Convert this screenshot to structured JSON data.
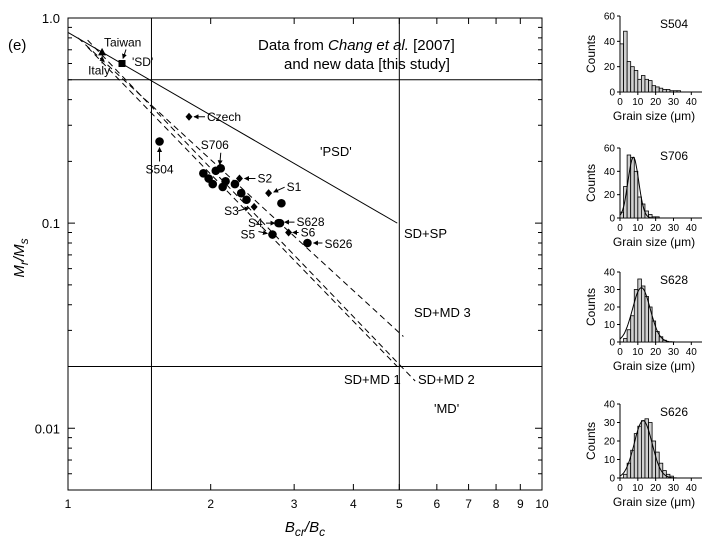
{
  "chart_data": [
    {
      "type": "scatter",
      "panel_label": "(e)",
      "xlabel_main": "B",
      "xlabel_sub1": "cr",
      "xlabel_mid": "/B",
      "xlabel_sub2": "c",
      "ylabel_main": "M",
      "ylabel_sub1": "r",
      "ylabel_mid": "/M",
      "ylabel_sub2": "s",
      "xscale": "log",
      "yscale": "log",
      "xlim": [
        1,
        10
      ],
      "ylim": [
        0.005,
        1.0
      ],
      "x_ticks": [
        "1",
        "2",
        "3",
        "4",
        "5",
        "6",
        "7",
        "8",
        "9",
        "10"
      ],
      "y_ticks": [
        "1.0",
        "0.1",
        "0.01"
      ],
      "annotation": {
        "line1_a": "Data from ",
        "line1_b": "Chang et al.",
        "line1_c": " [2007]",
        "line2": "and new data [this study]"
      },
      "region_labels": {
        "sd": "'SD'",
        "psd": "'PSD'",
        "md": "'MD'"
      },
      "curve_labels": {
        "sd_sp": "SD+SP",
        "sd_md3": "SD+MD 3",
        "sd_md1": "SD+MD 1",
        "sd_md2": "SD+MD 2"
      },
      "boundaries": {
        "x": [
          1.5,
          5.0
        ],
        "y": [
          0.5,
          0.02
        ]
      },
      "curves": [
        {
          "name": "SD+SP",
          "style": "solid",
          "x": [
            1.0,
            4.95
          ],
          "y": [
            0.85,
            0.1
          ]
        },
        {
          "name": "SD+MD 3",
          "style": "dashed",
          "x": [
            1.05,
            5.1
          ],
          "y": [
            0.8,
            0.028
          ]
        },
        {
          "name": "SD+MD 1",
          "style": "dashed",
          "x": [
            1.1,
            4.95
          ],
          "y": [
            0.72,
            0.02
          ]
        },
        {
          "name": "SD+MD 2",
          "style": "dashed",
          "x": [
            1.1,
            5.4
          ],
          "y": [
            0.78,
            0.017
          ]
        }
      ],
      "reference_points": [
        {
          "label": "Taiwan",
          "marker": "square",
          "x": 1.3,
          "y": 0.6
        },
        {
          "label": "Italy",
          "marker": "triangle",
          "x": 1.18,
          "y": 0.68
        },
        {
          "label": "Czech",
          "marker": "diamond",
          "x": 1.8,
          "y": 0.33
        }
      ],
      "labelled_samples": [
        {
          "label": "S504",
          "marker": "circle",
          "x": 1.56,
          "y": 0.25
        },
        {
          "label": "S706",
          "marker": "circle",
          "x": 2.05,
          "y": 0.18
        },
        {
          "label": "S2",
          "marker": "diamond",
          "x": 2.3,
          "y": 0.165
        },
        {
          "label": "S1",
          "marker": "diamond",
          "x": 2.65,
          "y": 0.14
        },
        {
          "label": "S3",
          "marker": "diamond",
          "x": 2.47,
          "y": 0.12
        },
        {
          "label": "S4",
          "marker": "circle",
          "x": 2.8,
          "y": 0.1
        },
        {
          "label": "S628",
          "marker": "circle",
          "x": 2.78,
          "y": 0.1
        },
        {
          "label": "S5",
          "marker": "circle",
          "x": 2.7,
          "y": 0.088
        },
        {
          "label": "S6",
          "marker": "diamond",
          "x": 2.92,
          "y": 0.09
        },
        {
          "label": "S626",
          "marker": "circle",
          "x": 3.2,
          "y": 0.08
        }
      ],
      "unlabelled_samples": [
        {
          "marker": "circle",
          "x": 1.93,
          "y": 0.175
        },
        {
          "marker": "circle",
          "x": 1.98,
          "y": 0.165
        },
        {
          "marker": "circle",
          "x": 2.02,
          "y": 0.155
        },
        {
          "marker": "circle",
          "x": 2.1,
          "y": 0.185
        },
        {
          "marker": "circle",
          "x": 2.15,
          "y": 0.16
        },
        {
          "marker": "circle",
          "x": 2.12,
          "y": 0.15
        },
        {
          "marker": "circle",
          "x": 2.25,
          "y": 0.155
        },
        {
          "marker": "circle",
          "x": 2.32,
          "y": 0.14
        },
        {
          "marker": "circle",
          "x": 2.38,
          "y": 0.13
        },
        {
          "marker": "circle",
          "x": 2.82,
          "y": 0.125
        }
      ]
    },
    {
      "type": "bar",
      "title": "S504",
      "ylabel": "Counts",
      "xlabel": "Grain size (μm)",
      "ylim": [
        0,
        60
      ],
      "y_ticks": [
        "0",
        "20",
        "40",
        "60"
      ],
      "x_ticks": [
        "0",
        "10",
        "20",
        "30",
        "40"
      ],
      "bin_width": 2,
      "bin_starts": [
        0,
        2,
        4,
        6,
        8,
        10,
        12,
        14,
        16,
        18,
        20,
        22,
        24,
        26,
        28,
        30,
        32
      ],
      "values": [
        38,
        48,
        24,
        20,
        17,
        10,
        13,
        10,
        9,
        5,
        4,
        3,
        2,
        2,
        1,
        1,
        1
      ],
      "fit": false
    },
    {
      "type": "bar",
      "title": "S706",
      "ylabel": "Counts",
      "xlabel": "Grain size (μm)",
      "ylim": [
        0,
        60
      ],
      "y_ticks": [
        "0",
        "20",
        "40",
        "60"
      ],
      "x_ticks": [
        "0",
        "10",
        "20",
        "30",
        "40"
      ],
      "bin_width": 2,
      "bin_starts": [
        0,
        2,
        4,
        6,
        8,
        10,
        12,
        14,
        16,
        18,
        20
      ],
      "values": [
        5,
        27,
        54,
        52,
        40,
        18,
        12,
        6,
        3,
        1,
        1
      ],
      "fit": true,
      "fit_mean": 7.5,
      "fit_sd": 3.0,
      "fit_peak": 52
    },
    {
      "type": "bar",
      "title": "S628",
      "ylabel": "Counts",
      "xlabel": "Grain size (μm)",
      "ylim": [
        0,
        40
      ],
      "y_ticks": [
        "0",
        "10",
        "20",
        "30",
        "40"
      ],
      "x_ticks": [
        "0",
        "10",
        "20",
        "30",
        "40"
      ],
      "bin_width": 2,
      "bin_starts": [
        2,
        4,
        6,
        8,
        10,
        12,
        14,
        16,
        18,
        20,
        22,
        24
      ],
      "values": [
        2,
        7,
        15,
        30,
        36,
        32,
        26,
        20,
        12,
        6,
        3,
        1
      ],
      "fit": true,
      "fit_mean": 12,
      "fit_sd": 5,
      "fit_peak": 31
    },
    {
      "type": "bar",
      "title": "S626",
      "ylabel": "Counts",
      "xlabel": "Grain size (μm)",
      "ylim": [
        0,
        40
      ],
      "y_ticks": [
        "0",
        "10",
        "20",
        "30",
        "40"
      ],
      "x_ticks": [
        "0",
        "10",
        "20",
        "30",
        "40"
      ],
      "bin_width": 2,
      "bin_starts": [
        2,
        4,
        6,
        8,
        10,
        12,
        14,
        16,
        18,
        20,
        22,
        24,
        26,
        28
      ],
      "values": [
        2,
        8,
        15,
        24,
        28,
        31,
        32,
        30,
        20,
        14,
        8,
        4,
        2,
        1
      ],
      "fit": true,
      "fit_mean": 13,
      "fit_sd": 5,
      "fit_peak": 31
    }
  ]
}
